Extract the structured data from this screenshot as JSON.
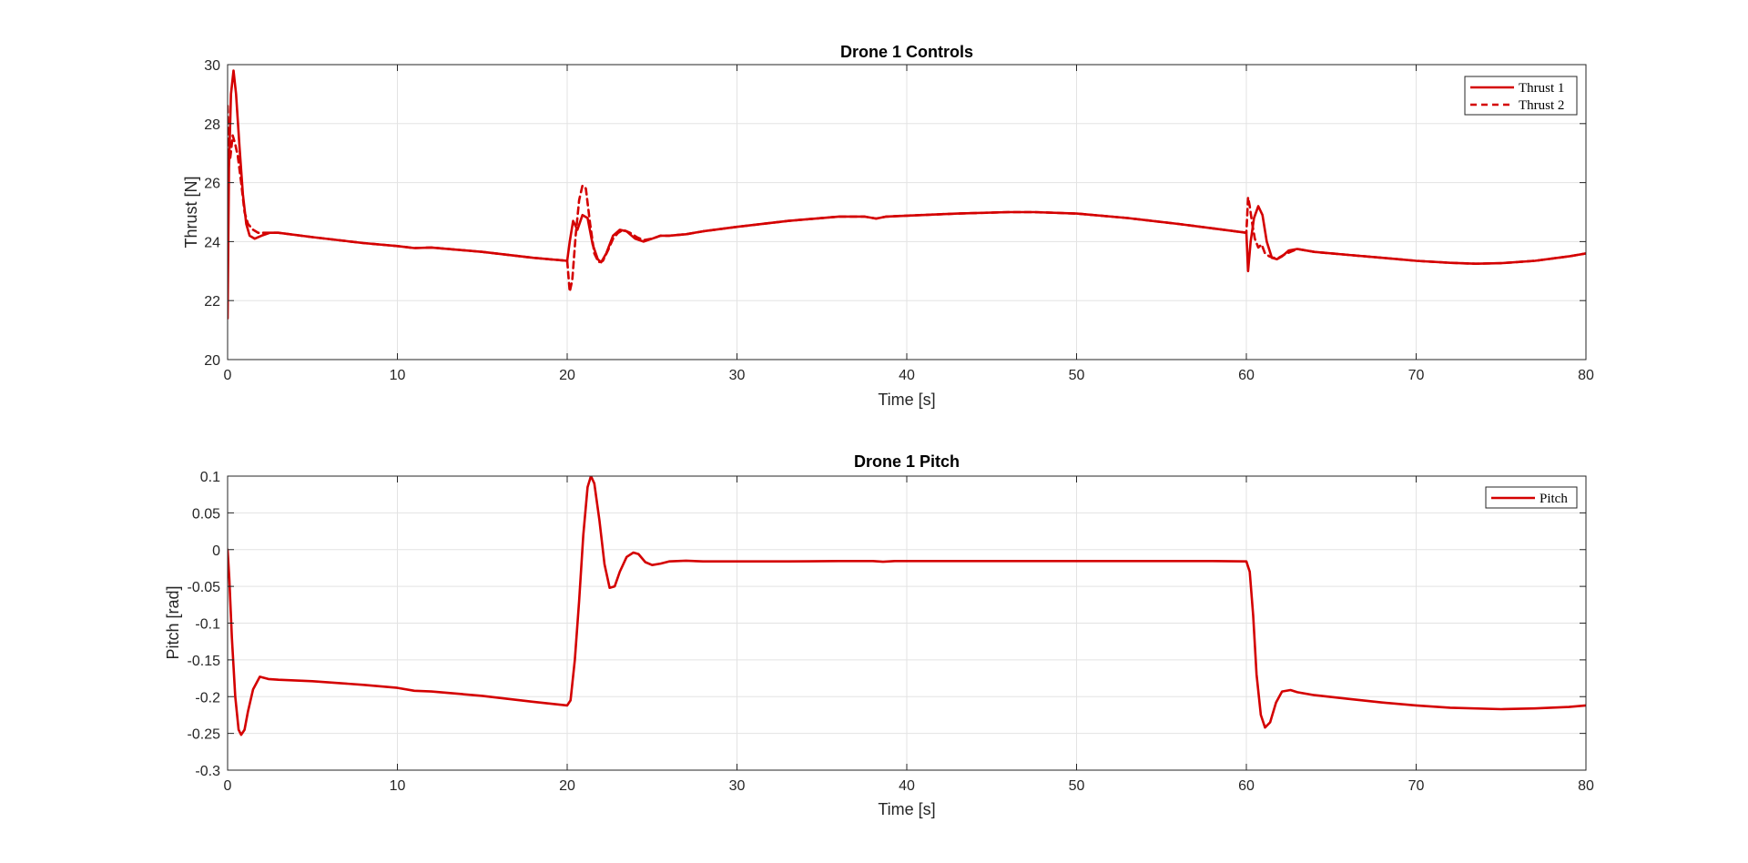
{
  "chart_data": [
    {
      "type": "line",
      "title": "Drone 1 Controls",
      "xlabel": "Time [s]",
      "ylabel": "Thrust [N]",
      "xlim": [
        0,
        80
      ],
      "ylim": [
        20,
        30
      ],
      "xticks": [
        0,
        10,
        20,
        30,
        40,
        50,
        60,
        70,
        80
      ],
      "yticks": [
        20,
        22,
        24,
        26,
        28,
        30
      ],
      "xtick_labels": [
        "0",
        "10",
        "20",
        "30",
        "40",
        "50",
        "60",
        "70",
        "80"
      ],
      "ytick_labels": [
        "20",
        "22",
        "24",
        "26",
        "28",
        "30"
      ],
      "grid": true,
      "legend": "top-right",
      "series": [
        {
          "name": "Thrust 1",
          "color": "#d40000",
          "style": "solid",
          "x": [
            0,
            0.08,
            0.2,
            0.35,
            0.5,
            0.7,
            0.9,
            1.1,
            1.3,
            1.6,
            2.0,
            2.5,
            3,
            5,
            8,
            10,
            11,
            12,
            15,
            18,
            20,
            20.15,
            20.35,
            20.6,
            20.9,
            21.2,
            21.5,
            21.8,
            22.0,
            22.3,
            22.7,
            23.1,
            23.5,
            24,
            24.5,
            25,
            25.5,
            26,
            27,
            28,
            30,
            33,
            36,
            37.5,
            38.2,
            38.8,
            40,
            43,
            46,
            47.5,
            50,
            53,
            56,
            58,
            60,
            60.1,
            60.25,
            60.45,
            60.7,
            60.95,
            61.2,
            61.5,
            61.8,
            62.1,
            62.5,
            63,
            64,
            66,
            68,
            70,
            72,
            73.5,
            75,
            77,
            79,
            80
          ],
          "y": [
            21.4,
            26.5,
            29.0,
            29.8,
            29.0,
            27.2,
            25.6,
            24.6,
            24.2,
            24.1,
            24.2,
            24.3,
            24.3,
            24.15,
            23.95,
            23.85,
            23.78,
            23.8,
            23.65,
            23.45,
            23.35,
            24.0,
            24.7,
            24.4,
            24.9,
            24.8,
            23.9,
            23.4,
            23.3,
            23.6,
            24.2,
            24.4,
            24.35,
            24.1,
            24.0,
            24.1,
            24.2,
            24.2,
            24.25,
            24.35,
            24.5,
            24.7,
            24.85,
            24.85,
            24.78,
            24.85,
            24.88,
            24.95,
            25.0,
            25.0,
            24.95,
            24.8,
            24.6,
            24.45,
            24.3,
            23.0,
            24.0,
            24.8,
            25.2,
            24.9,
            24.0,
            23.45,
            23.4,
            23.5,
            23.7,
            23.75,
            23.65,
            23.55,
            23.45,
            23.35,
            23.28,
            23.25,
            23.27,
            23.35,
            23.5,
            23.6
          ]
        },
        {
          "name": "Thrust 2",
          "color": "#d40000",
          "style": "dashed",
          "x": [
            0,
            0.05,
            0.15,
            0.3,
            0.45,
            0.6,
            0.8,
            1.0,
            1.2,
            1.5,
            1.8,
            2.2,
            2.6,
            3,
            5,
            8,
            10,
            11,
            12,
            15,
            18,
            20,
            20.15,
            20.3,
            20.5,
            20.7,
            20.9,
            21.1,
            21.35,
            21.6,
            21.85,
            22.1,
            22.4,
            22.7,
            23.0,
            23.3,
            23.7,
            24.1,
            24.5,
            25,
            25.5,
            26,
            27,
            28,
            30,
            33,
            36,
            37.5,
            38.2,
            38.8,
            40,
            43,
            46,
            47.5,
            50,
            53,
            56,
            58,
            60,
            60.1,
            60.2,
            60.35,
            60.5,
            60.7,
            60.9,
            61.1,
            61.35,
            61.6,
            61.9,
            62.2,
            62.6,
            63,
            64,
            66,
            68,
            70,
            72,
            73.5,
            75,
            77,
            79,
            80
          ],
          "y": [
            28.6,
            27.0,
            26.8,
            27.6,
            27.3,
            26.9,
            26.0,
            25.0,
            24.6,
            24.4,
            24.3,
            24.3,
            24.3,
            24.3,
            24.15,
            23.95,
            23.85,
            23.78,
            23.8,
            23.65,
            23.45,
            23.35,
            22.3,
            22.7,
            24.2,
            25.4,
            25.9,
            25.8,
            24.6,
            23.6,
            23.3,
            23.35,
            23.7,
            24.1,
            24.3,
            24.4,
            24.3,
            24.15,
            24.05,
            24.1,
            24.2,
            24.2,
            24.25,
            24.35,
            24.5,
            24.7,
            24.85,
            24.85,
            24.78,
            24.85,
            24.88,
            24.95,
            25.0,
            25.0,
            24.95,
            24.8,
            24.6,
            24.45,
            24.3,
            25.5,
            25.2,
            24.6,
            24.1,
            23.8,
            23.9,
            23.6,
            23.5,
            23.45,
            23.45,
            23.55,
            23.65,
            23.75,
            23.65,
            23.55,
            23.45,
            23.35,
            23.28,
            23.25,
            23.27,
            23.35,
            23.5,
            23.6
          ]
        }
      ]
    },
    {
      "type": "line",
      "title": "Drone 1 Pitch",
      "xlabel": "Time [s]",
      "ylabel": "Pitch [rad]",
      "xlim": [
        0,
        80
      ],
      "ylim": [
        -0.3,
        0.1
      ],
      "xticks": [
        0,
        10,
        20,
        30,
        40,
        50,
        60,
        70,
        80
      ],
      "yticks": [
        -0.3,
        -0.25,
        -0.2,
        -0.15,
        -0.1,
        -0.05,
        0,
        0.05,
        0.1
      ],
      "xtick_labels": [
        "0",
        "10",
        "20",
        "30",
        "40",
        "50",
        "60",
        "70",
        "80"
      ],
      "ytick_labels": [
        "-0.3",
        "-0.25",
        "-0.2",
        "-0.15",
        "-0.1",
        "-0.05",
        "0",
        "0.05",
        "0.1"
      ],
      "grid": true,
      "legend": "top-right",
      "series": [
        {
          "name": "Pitch",
          "color": "#d40000",
          "style": "solid",
          "x": [
            0,
            0.1,
            0.25,
            0.45,
            0.65,
            0.8,
            1.0,
            1.2,
            1.5,
            1.9,
            2.4,
            3,
            5,
            8,
            10,
            11,
            12,
            15,
            18,
            20,
            20.2,
            20.45,
            20.7,
            20.95,
            21.2,
            21.4,
            21.6,
            21.9,
            22.2,
            22.5,
            22.8,
            23.1,
            23.5,
            23.9,
            24.2,
            24.6,
            25,
            25.5,
            26,
            27,
            28,
            30,
            33,
            36,
            38,
            38.6,
            39.3,
            40,
            45,
            50,
            55,
            58,
            60,
            60.2,
            60.4,
            60.6,
            60.85,
            61.1,
            61.4,
            61.75,
            62.1,
            62.6,
            63,
            64,
            66,
            68,
            70,
            72,
            75,
            77,
            79,
            80
          ],
          "y": [
            0.0,
            -0.04,
            -0.12,
            -0.2,
            -0.245,
            -0.252,
            -0.245,
            -0.22,
            -0.19,
            -0.173,
            -0.176,
            -0.177,
            -0.179,
            -0.184,
            -0.188,
            -0.192,
            -0.193,
            -0.199,
            -0.207,
            -0.212,
            -0.205,
            -0.15,
            -0.07,
            0.02,
            0.085,
            0.1,
            0.09,
            0.04,
            -0.02,
            -0.052,
            -0.05,
            -0.03,
            -0.01,
            -0.004,
            -0.006,
            -0.017,
            -0.021,
            -0.019,
            -0.016,
            -0.015,
            -0.016,
            -0.016,
            -0.016,
            -0.0155,
            -0.0155,
            -0.0165,
            -0.0155,
            -0.0155,
            -0.0155,
            -0.0155,
            -0.0155,
            -0.0155,
            -0.016,
            -0.03,
            -0.09,
            -0.17,
            -0.225,
            -0.242,
            -0.235,
            -0.208,
            -0.193,
            -0.191,
            -0.194,
            -0.198,
            -0.203,
            -0.208,
            -0.212,
            -0.215,
            -0.217,
            -0.216,
            -0.214,
            -0.212
          ]
        }
      ]
    }
  ]
}
